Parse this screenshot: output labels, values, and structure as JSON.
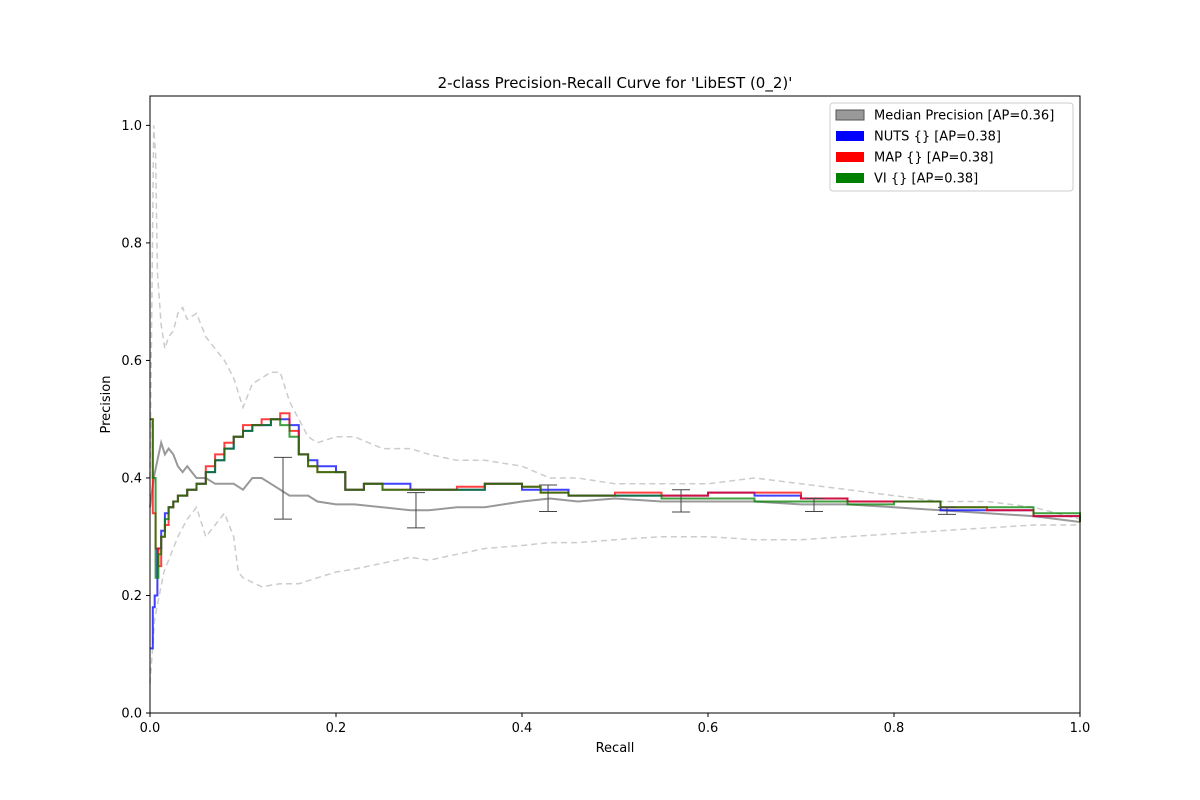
{
  "chart_data": {
    "type": "line",
    "title": "2-class Precision-Recall Curve for 'LibEST (0_2)'",
    "xlabel": "Recall",
    "ylabel": "Precision",
    "xlim": [
      0.0,
      1.0
    ],
    "ylim": [
      0.0,
      1.05
    ],
    "x_ticks": [
      0.0,
      0.2,
      0.4,
      0.6,
      0.8,
      1.0
    ],
    "x_tick_labels": [
      "0.0",
      "0.2",
      "0.4",
      "0.6",
      "0.8",
      "1.0"
    ],
    "y_ticks": [
      0.0,
      0.2,
      0.4,
      0.6,
      0.8,
      1.0
    ],
    "y_tick_labels": [
      "0.0",
      "0.2",
      "0.4",
      "0.6",
      "0.8",
      "1.0"
    ],
    "grid": false,
    "legend_position": "top-right",
    "legend": [
      {
        "label": "Median Precision [AP=0.36]",
        "color": "#999999"
      },
      {
        "label": "NUTS {} [AP=0.38]",
        "color": "#0000ff"
      },
      {
        "label": "MAP {} [AP=0.38]",
        "color": "#ff0000"
      },
      {
        "label": "VI {} [AP=0.38]",
        "color": "#008000"
      }
    ],
    "series": [
      {
        "name": "NUTS {} [AP=0.38]",
        "color": "#0000ff",
        "style": "step",
        "x": [
          0.0,
          0.003,
          0.005,
          0.008,
          0.012,
          0.016,
          0.02,
          0.025,
          0.03,
          0.04,
          0.05,
          0.06,
          0.07,
          0.08,
          0.09,
          0.1,
          0.11,
          0.12,
          0.13,
          0.14,
          0.15,
          0.16,
          0.17,
          0.18,
          0.2,
          0.21,
          0.23,
          0.25,
          0.28,
          0.3,
          0.33,
          0.36,
          0.38,
          0.4,
          0.42,
          0.45,
          0.5,
          0.55,
          0.6,
          0.65,
          0.7,
          0.75,
          0.8,
          0.85,
          0.9,
          0.95,
          1.0
        ],
        "y": [
          0.11,
          0.18,
          0.2,
          0.28,
          0.31,
          0.34,
          0.35,
          0.36,
          0.37,
          0.38,
          0.39,
          0.41,
          0.43,
          0.45,
          0.47,
          0.48,
          0.49,
          0.49,
          0.5,
          0.5,
          0.49,
          0.44,
          0.43,
          0.42,
          0.41,
          0.38,
          0.39,
          0.39,
          0.38,
          0.38,
          0.38,
          0.39,
          0.39,
          0.38,
          0.38,
          0.37,
          0.37,
          0.37,
          0.375,
          0.37,
          0.365,
          0.36,
          0.36,
          0.345,
          0.345,
          0.335,
          0.325
        ]
      },
      {
        "name": "MAP {} [AP=0.38]",
        "color": "#ff0000",
        "style": "step",
        "x": [
          0.0,
          0.003,
          0.006,
          0.009,
          0.012,
          0.016,
          0.02,
          0.025,
          0.03,
          0.04,
          0.05,
          0.06,
          0.07,
          0.08,
          0.09,
          0.1,
          0.11,
          0.12,
          0.13,
          0.14,
          0.15,
          0.16,
          0.17,
          0.18,
          0.2,
          0.21,
          0.23,
          0.25,
          0.28,
          0.3,
          0.33,
          0.36,
          0.38,
          0.4,
          0.42,
          0.45,
          0.5,
          0.55,
          0.6,
          0.65,
          0.7,
          0.75,
          0.8,
          0.85,
          0.9,
          0.95,
          1.0
        ],
        "y": [
          0.5,
          0.34,
          0.28,
          0.25,
          0.3,
          0.32,
          0.35,
          0.36,
          0.37,
          0.38,
          0.39,
          0.42,
          0.44,
          0.46,
          0.47,
          0.49,
          0.49,
          0.5,
          0.5,
          0.51,
          0.48,
          0.44,
          0.42,
          0.41,
          0.41,
          0.38,
          0.39,
          0.38,
          0.38,
          0.38,
          0.385,
          0.39,
          0.39,
          0.385,
          0.375,
          0.37,
          0.375,
          0.37,
          0.375,
          0.375,
          0.365,
          0.36,
          0.36,
          0.35,
          0.345,
          0.335,
          0.325
        ]
      },
      {
        "name": "VI {} [AP=0.38]",
        "color": "#008000",
        "style": "step",
        "x": [
          0.0,
          0.003,
          0.006,
          0.009,
          0.012,
          0.016,
          0.02,
          0.025,
          0.03,
          0.04,
          0.05,
          0.06,
          0.07,
          0.08,
          0.09,
          0.1,
          0.11,
          0.12,
          0.13,
          0.14,
          0.15,
          0.16,
          0.17,
          0.18,
          0.2,
          0.21,
          0.23,
          0.25,
          0.28,
          0.3,
          0.33,
          0.36,
          0.38,
          0.4,
          0.42,
          0.45,
          0.5,
          0.55,
          0.6,
          0.65,
          0.7,
          0.75,
          0.8,
          0.85,
          0.9,
          0.95,
          1.0
        ],
        "y": [
          0.5,
          0.4,
          0.23,
          0.27,
          0.3,
          0.33,
          0.35,
          0.36,
          0.37,
          0.38,
          0.39,
          0.41,
          0.43,
          0.45,
          0.47,
          0.48,
          0.49,
          0.49,
          0.5,
          0.49,
          0.47,
          0.44,
          0.42,
          0.41,
          0.41,
          0.38,
          0.39,
          0.38,
          0.38,
          0.38,
          0.38,
          0.39,
          0.39,
          0.385,
          0.375,
          0.37,
          0.37,
          0.365,
          0.365,
          0.36,
          0.36,
          0.355,
          0.36,
          0.35,
          0.35,
          0.34,
          0.325
        ]
      },
      {
        "name": "Median Precision [AP=0.36]",
        "color": "#999999",
        "style": "line",
        "x": [
          0.0,
          0.004,
          0.008,
          0.012,
          0.016,
          0.02,
          0.025,
          0.03,
          0.035,
          0.04,
          0.05,
          0.06,
          0.07,
          0.08,
          0.09,
          0.1,
          0.11,
          0.12,
          0.13,
          0.14,
          0.15,
          0.16,
          0.17,
          0.18,
          0.2,
          0.22,
          0.25,
          0.28,
          0.3,
          0.33,
          0.36,
          0.4,
          0.43,
          0.46,
          0.5,
          0.55,
          0.6,
          0.65,
          0.7,
          0.75,
          0.8,
          0.85,
          0.9,
          0.95,
          1.0
        ],
        "y": [
          0.35,
          0.4,
          0.43,
          0.46,
          0.44,
          0.45,
          0.44,
          0.42,
          0.41,
          0.42,
          0.4,
          0.4,
          0.39,
          0.39,
          0.39,
          0.38,
          0.4,
          0.4,
          0.39,
          0.38,
          0.37,
          0.37,
          0.37,
          0.36,
          0.355,
          0.355,
          0.35,
          0.345,
          0.345,
          0.35,
          0.35,
          0.36,
          0.365,
          0.36,
          0.365,
          0.36,
          0.36,
          0.36,
          0.355,
          0.355,
          0.35,
          0.345,
          0.34,
          0.335,
          0.325
        ]
      },
      {
        "name": "upper bound",
        "color": "#cccccc",
        "style": "dashed",
        "x": [
          0.0,
          0.004,
          0.006,
          0.008,
          0.012,
          0.016,
          0.02,
          0.025,
          0.03,
          0.035,
          0.04,
          0.05,
          0.06,
          0.07,
          0.08,
          0.09,
          0.1,
          0.11,
          0.12,
          0.13,
          0.14,
          0.15,
          0.16,
          0.17,
          0.18,
          0.2,
          0.22,
          0.25,
          0.28,
          0.3,
          0.33,
          0.36,
          0.4,
          0.43,
          0.46,
          0.5,
          0.55,
          0.6,
          0.65,
          0.7,
          0.75,
          0.8,
          0.85,
          0.9,
          0.95,
          1.0
        ],
        "y": [
          0.4,
          1.0,
          0.95,
          0.75,
          0.66,
          0.62,
          0.64,
          0.65,
          0.68,
          0.69,
          0.67,
          0.68,
          0.64,
          0.62,
          0.6,
          0.57,
          0.52,
          0.56,
          0.57,
          0.58,
          0.58,
          0.53,
          0.5,
          0.47,
          0.46,
          0.47,
          0.47,
          0.45,
          0.45,
          0.44,
          0.43,
          0.43,
          0.42,
          0.4,
          0.4,
          0.39,
          0.39,
          0.39,
          0.4,
          0.39,
          0.38,
          0.37,
          0.36,
          0.36,
          0.35,
          0.33
        ]
      },
      {
        "name": "lower bound",
        "color": "#cccccc",
        "style": "dashed",
        "x": [
          0.0,
          0.005,
          0.01,
          0.015,
          0.02,
          0.03,
          0.04,
          0.05,
          0.06,
          0.07,
          0.08,
          0.09,
          0.095,
          0.1,
          0.12,
          0.14,
          0.16,
          0.18,
          0.2,
          0.22,
          0.25,
          0.28,
          0.3,
          0.33,
          0.36,
          0.4,
          0.43,
          0.46,
          0.5,
          0.55,
          0.6,
          0.65,
          0.7,
          0.75,
          0.8,
          0.85,
          0.9,
          0.95,
          1.0
        ],
        "y": [
          0.05,
          0.16,
          0.2,
          0.24,
          0.26,
          0.3,
          0.33,
          0.35,
          0.3,
          0.32,
          0.34,
          0.3,
          0.24,
          0.23,
          0.215,
          0.22,
          0.22,
          0.23,
          0.24,
          0.245,
          0.255,
          0.265,
          0.26,
          0.27,
          0.28,
          0.285,
          0.29,
          0.29,
          0.295,
          0.3,
          0.3,
          0.295,
          0.295,
          0.3,
          0.305,
          0.31,
          0.315,
          0.32,
          0.32
        ]
      }
    ],
    "error_bars": [
      {
        "x": 0.143,
        "low": 0.33,
        "high": 0.435
      },
      {
        "x": 0.286,
        "low": 0.315,
        "high": 0.375
      },
      {
        "x": 0.428,
        "low": 0.343,
        "high": 0.388
      },
      {
        "x": 0.571,
        "low": 0.342,
        "high": 0.38
      },
      {
        "x": 0.714,
        "low": 0.343,
        "high": 0.365
      },
      {
        "x": 0.857,
        "low": 0.338,
        "high": 0.35
      }
    ]
  }
}
